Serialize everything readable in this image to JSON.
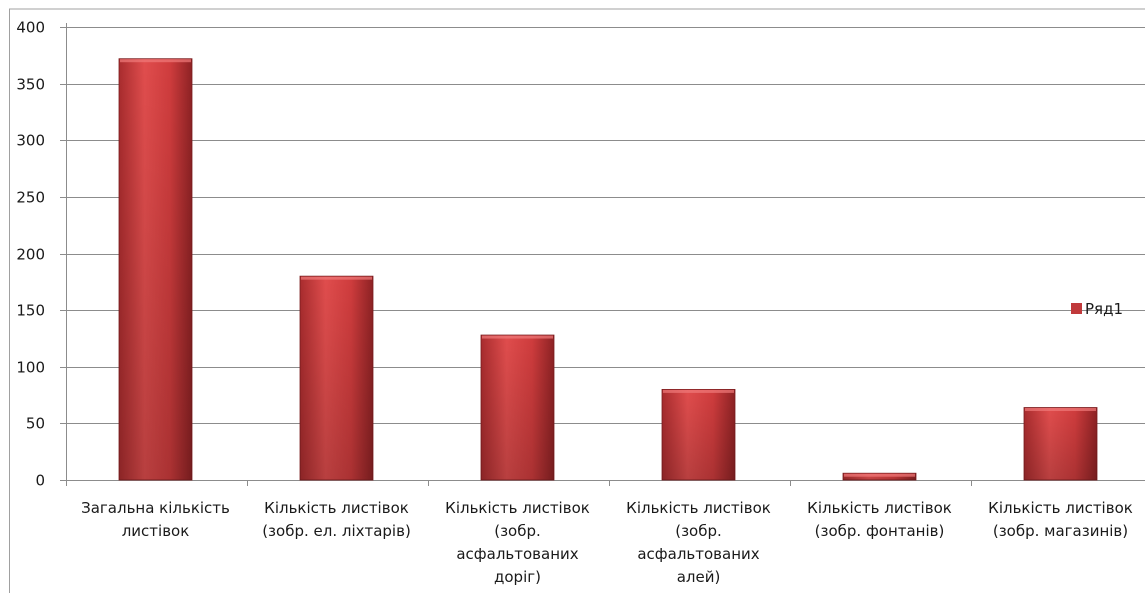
{
  "chart_data": {
    "type": "bar",
    "categories": [
      "Загальна кількість листівок",
      "Кількість листівок (зобр. ел. ліхтарів)",
      "Кількість листівок (зобр. асфальтованих доріг)",
      "Кількість листівок (зобр. асфальтованих алей)",
      "Кількість листівок (зобр. фонтанів)",
      "Кількість листівок (зобр. магазинів)"
    ],
    "category_lines": [
      [
        "Загальна кількість",
        "листівок"
      ],
      [
        "Кількість листівок",
        "(зобр. ел. ліхтарів)"
      ],
      [
        "Кількість листівок",
        "(зобр.",
        "асфальтованих",
        "доріг)"
      ],
      [
        "Кількість листівок",
        "(зобр.",
        "асфальтованих",
        "алей)"
      ],
      [
        "Кількість листівок",
        "(зобр. фонтанів)"
      ],
      [
        "Кількість листівок",
        "(зобр. магазинів)"
      ]
    ],
    "series": [
      {
        "name": "Ряд1",
        "values": [
          372,
          180,
          128,
          80,
          6,
          64
        ]
      }
    ],
    "y_ticks": [
      "0",
      "50",
      "100",
      "150",
      "200",
      "250",
      "300",
      "350",
      "400"
    ],
    "ylim": [
      0,
      400
    ],
    "grid": true,
    "legend_position": "right",
    "bar_color": "#c0393b",
    "bar_color_light": "#e05a5a",
    "bar_color_dark": "#8e2224",
    "grid_color": "#8c8c8c"
  }
}
